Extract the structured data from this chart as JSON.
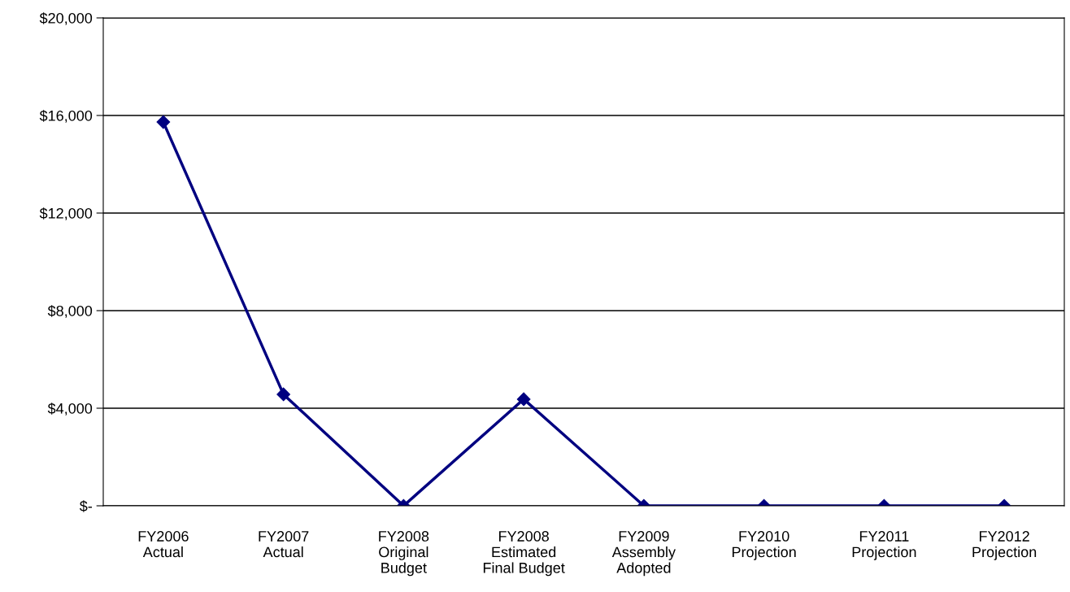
{
  "chart_data": {
    "type": "line",
    "categories": [
      "FY2006\nActual",
      "FY2007\nActual",
      "FY2008\nOriginal\nBudget",
      "FY2008\nEstimated\nFinal Budget",
      "FY2009\nAssembly\nAdopted",
      "FY2010\nProjection",
      "FY2011\nProjection",
      "FY2012\nProjection"
    ],
    "series": [
      {
        "color": "#000080",
        "values": [
          15730,
          4570,
          0,
          4370,
          0,
          0,
          0,
          0
        ]
      }
    ],
    "ylim": [
      0,
      20000
    ],
    "yticks": [
      {
        "value": 0,
        "label": "$-"
      },
      {
        "value": 4000,
        "label": "$4,000"
      },
      {
        "value": 8000,
        "label": "$8,000"
      },
      {
        "value": 12000,
        "label": "$12,000"
      },
      {
        "value": 16000,
        "label": "$16,000"
      },
      {
        "value": 20000,
        "label": "$20,000"
      }
    ],
    "grid": "y",
    "marker": "diamond",
    "line_style": "solid",
    "legend": false
  }
}
